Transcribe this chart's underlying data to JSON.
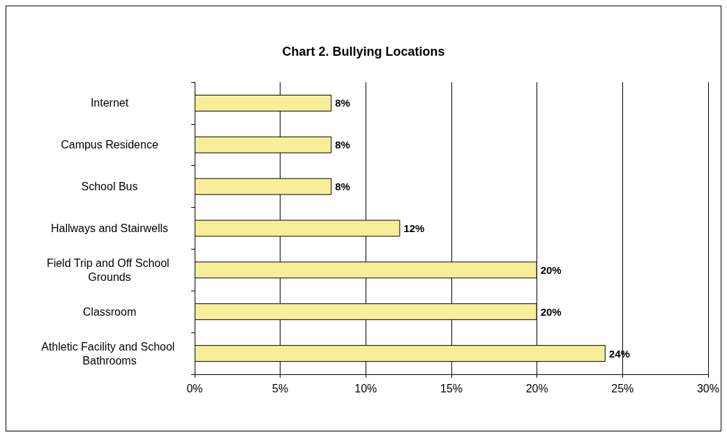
{
  "chart_data": {
    "type": "bar",
    "orientation": "horizontal",
    "title": "Chart 2. Bullying Locations",
    "categories": [
      "Internet",
      "Campus Residence",
      "School Bus",
      "Hallways and Stairwells",
      "Field Trip and Off School Grounds",
      "Classroom",
      "Athletic Facility and School Bathrooms"
    ],
    "values": [
      8,
      8,
      8,
      12,
      20,
      20,
      24
    ],
    "value_labels": [
      "8%",
      "8%",
      "8%",
      "12%",
      "20%",
      "20%",
      "24%"
    ],
    "color": "#f8ee9a",
    "xlim": [
      0,
      30
    ],
    "xticks": [
      {
        "value": 0,
        "label": "0%"
      },
      {
        "value": 5,
        "label": "5%"
      },
      {
        "value": 10,
        "label": "10%"
      },
      {
        "value": 15,
        "label": "15%"
      },
      {
        "value": 20,
        "label": "20%"
      },
      {
        "value": 25,
        "label": "25%"
      },
      {
        "value": 30,
        "label": "30%"
      }
    ],
    "grid": "x"
  }
}
